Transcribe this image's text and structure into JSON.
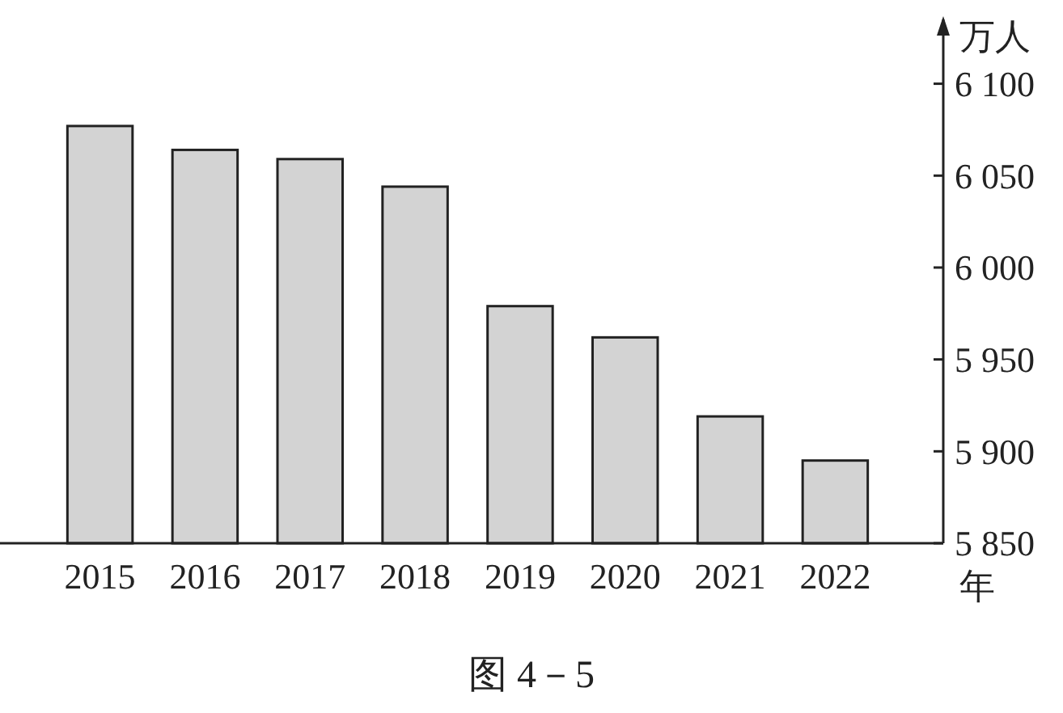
{
  "chart_data": {
    "type": "bar",
    "title": "图 4－5",
    "xlabel": "年",
    "ylabel": "万人",
    "categories": [
      "2015",
      "2016",
      "2017",
      "2018",
      "2019",
      "2020",
      "2021",
      "2022"
    ],
    "values": [
      6077,
      6064,
      6059,
      6044,
      5979,
      5962,
      5919,
      5895
    ],
    "color": "#d3d3d3",
    "ylim": [
      5850,
      6135
    ],
    "yticks": [
      {
        "value": 5850,
        "label": "5 850"
      },
      {
        "value": 5900,
        "label": "5 900"
      },
      {
        "value": 5950,
        "label": "5 950"
      },
      {
        "value": 6000,
        "label": "6 000"
      },
      {
        "value": 6050,
        "label": "6 050"
      },
      {
        "value": 6100,
        "label": "6 100"
      }
    ],
    "grid": false
  }
}
